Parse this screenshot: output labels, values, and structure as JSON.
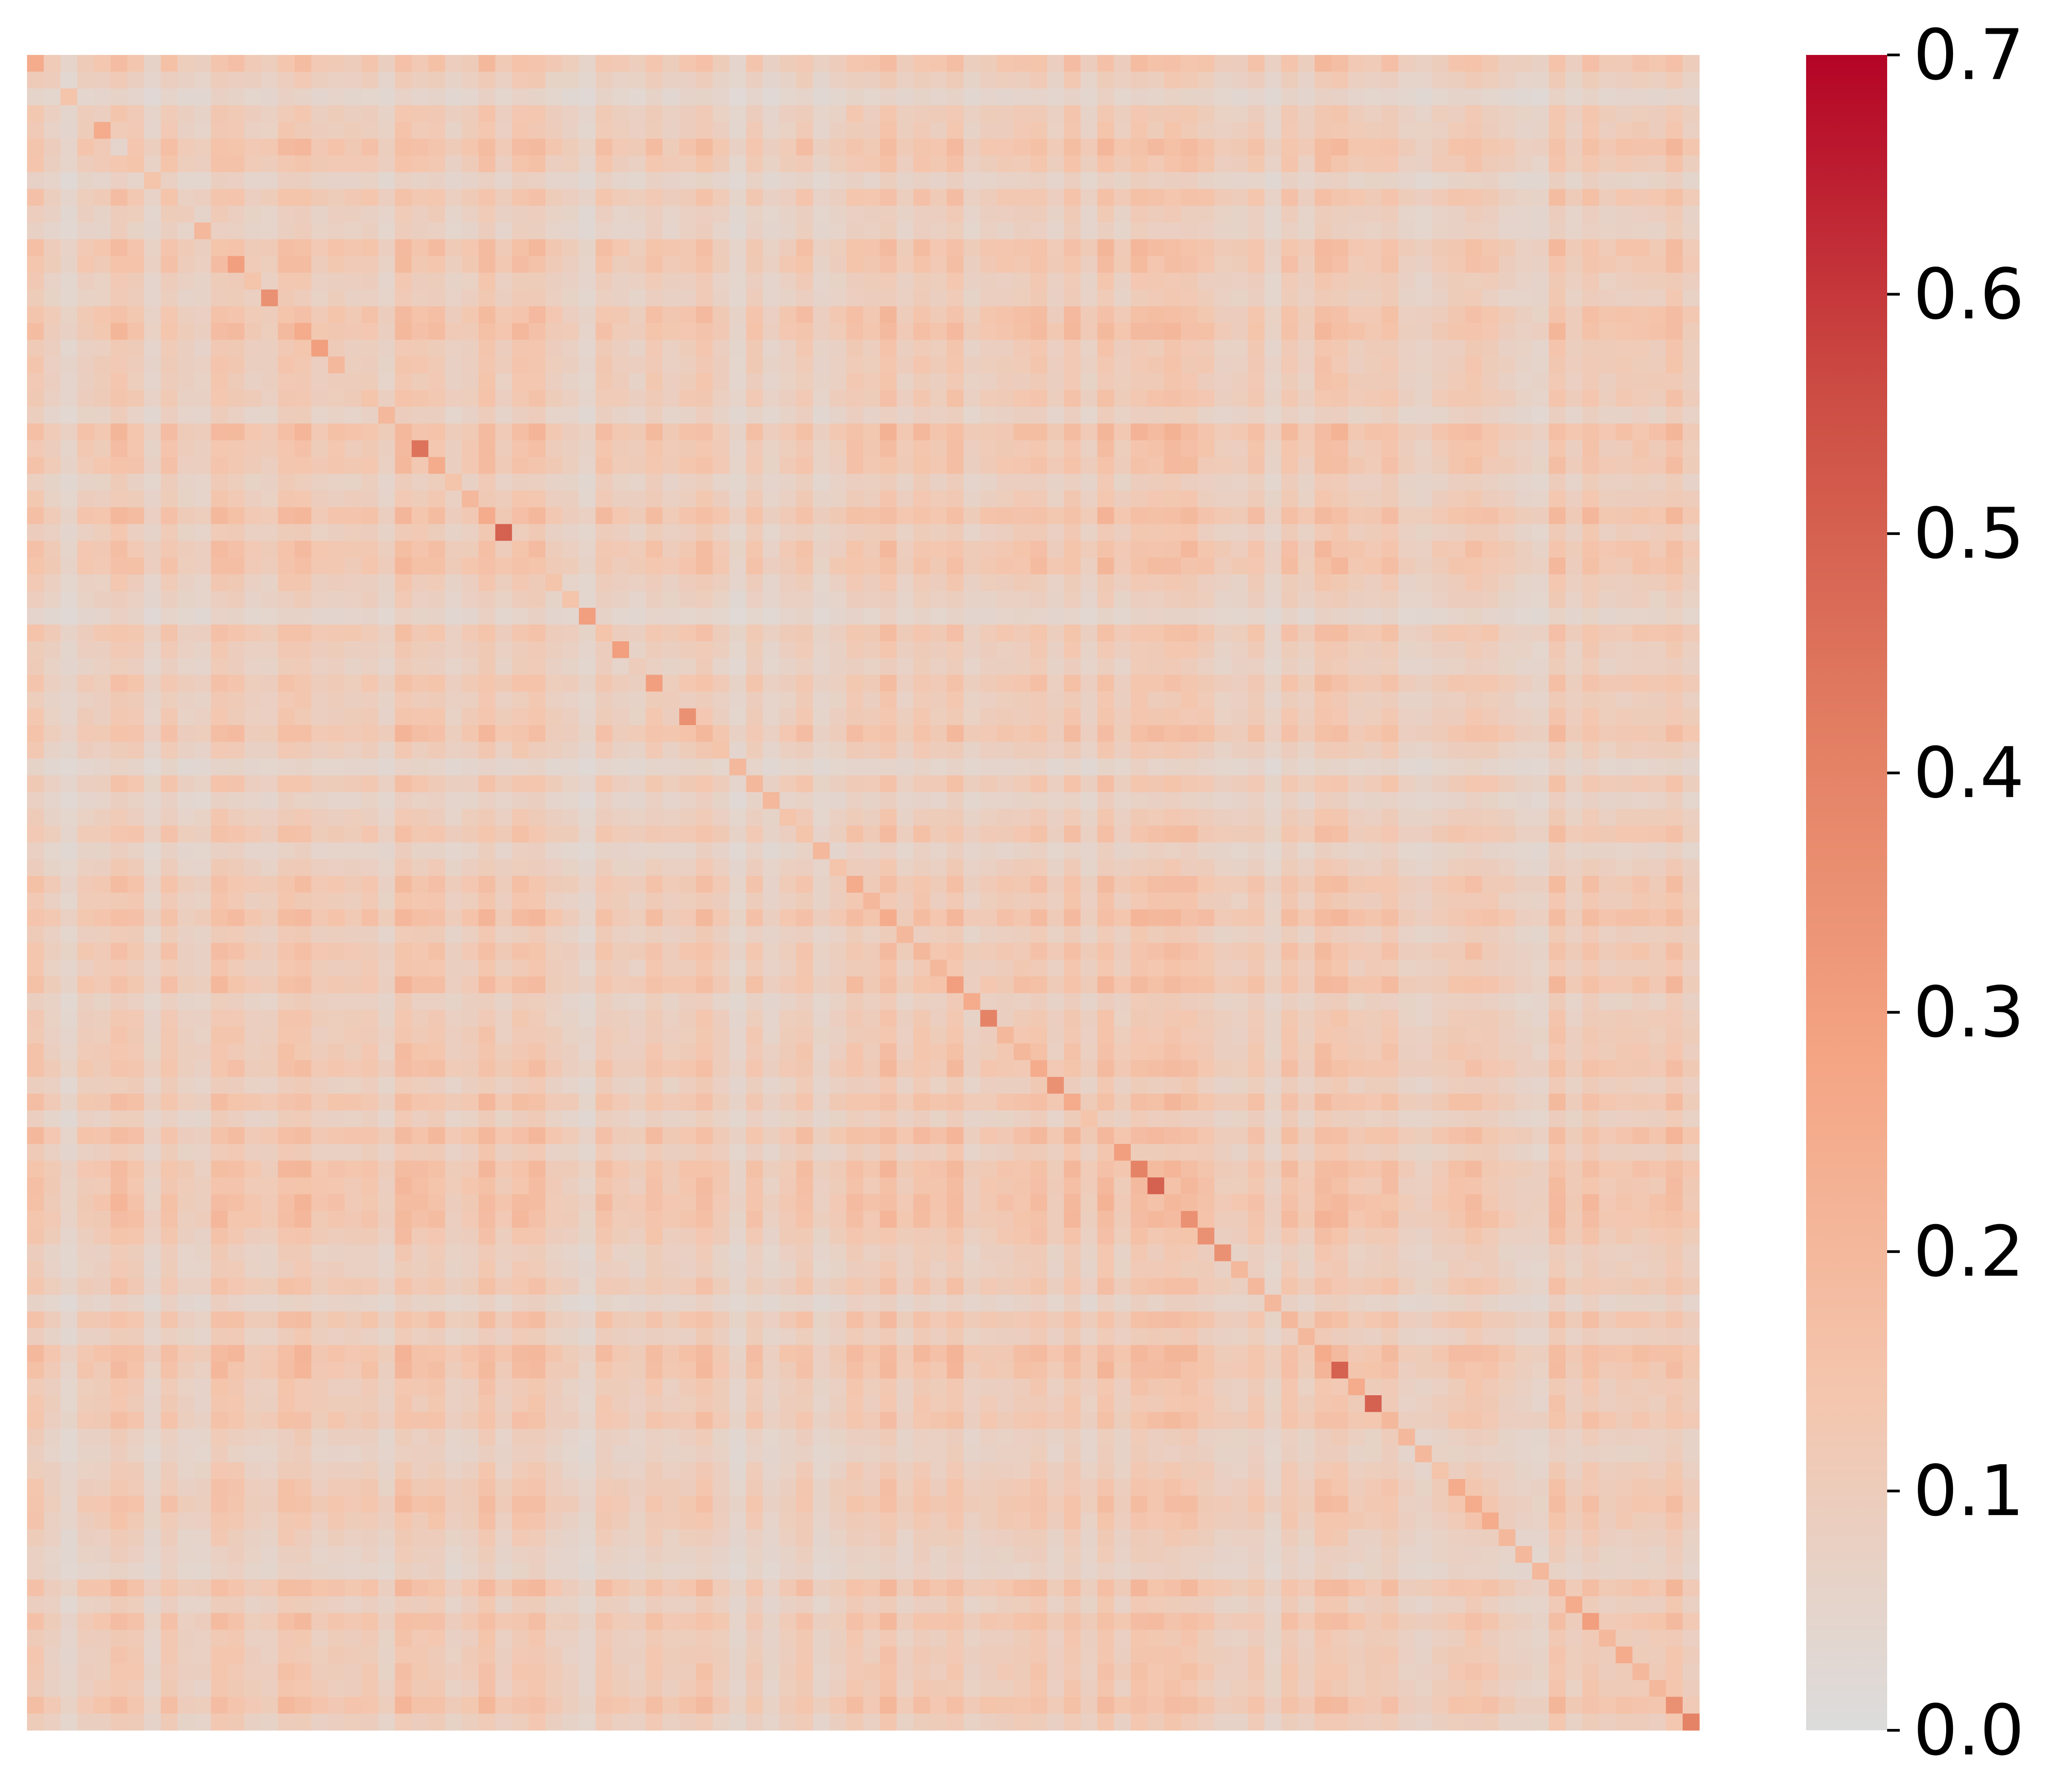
{
  "chart_data": {
    "type": "heatmap",
    "title": "",
    "xlabel": "",
    "ylabel": "",
    "n": 100,
    "diagonal": [
      0.25,
      0.1,
      0.15,
      0.1,
      0.25,
      0.05,
      0.15,
      0.15,
      0.15,
      0.1,
      0.2,
      0.15,
      0.3,
      0.15,
      0.35,
      0.15,
      0.25,
      0.3,
      0.2,
      0.1,
      0.15,
      0.2,
      0.2,
      0.45,
      0.25,
      0.15,
      0.2,
      0.25,
      0.5,
      0.15,
      0.15,
      0.15,
      0.15,
      0.3,
      0.15,
      0.3,
      0.1,
      0.3,
      0.1,
      0.35,
      0.2,
      0.15,
      0.2,
      0.2,
      0.2,
      0.15,
      0.15,
      0.2,
      0.15,
      0.25,
      0.2,
      0.25,
      0.2,
      0.2,
      0.2,
      0.3,
      0.25,
      0.4,
      0.2,
      0.2,
      0.25,
      0.35,
      0.25,
      0.15,
      0.2,
      0.3,
      0.4,
      0.5,
      0.2,
      0.35,
      0.35,
      0.35,
      0.2,
      0.2,
      0.2,
      0.2,
      0.2,
      0.25,
      0.5,
      0.25,
      0.5,
      0.2,
      0.2,
      0.2,
      0.15,
      0.25,
      0.25,
      0.25,
      0.2,
      0.2,
      0.2,
      0.2,
      0.25,
      0.3,
      0.2,
      0.25,
      0.2,
      0.2,
      0.35,
      0.4
    ],
    "row_strength": [
      0.13,
      0.06,
      0.02,
      0.08,
      0.08,
      0.16,
      0.11,
      0.03,
      0.12,
      0.05,
      0.04,
      0.15,
      0.13,
      0.07,
      0.06,
      0.15,
      0.16,
      0.08,
      0.09,
      0.08,
      0.1,
      0.04,
      0.18,
      0.12,
      0.13,
      0.05,
      0.08,
      0.17,
      0.07,
      0.14,
      0.15,
      0.07,
      0.05,
      0.02,
      0.12,
      0.07,
      0.05,
      0.12,
      0.07,
      0.09,
      0.15,
      0.07,
      0.02,
      0.1,
      0.03,
      0.07,
      0.12,
      0.03,
      0.06,
      0.13,
      0.09,
      0.17,
      0.06,
      0.13,
      0.09,
      0.16,
      0.05,
      0.08,
      0.09,
      0.11,
      0.14,
      0.06,
      0.15,
      0.05,
      0.17,
      0.07,
      0.16,
      0.14,
      0.17,
      0.16,
      0.11,
      0.06,
      0.06,
      0.11,
      0.03,
      0.13,
      0.06,
      0.18,
      0.16,
      0.09,
      0.09,
      0.13,
      0.05,
      0.04,
      0.07,
      0.1,
      0.13,
      0.1,
      0.06,
      0.04,
      0.03,
      0.16,
      0.06,
      0.14,
      0.08,
      0.09,
      0.1,
      0.09,
      0.16,
      0.07
    ],
    "vmin": 0.0,
    "vmax": 0.7,
    "colormap": [
      "#dcdcdc",
      "#f4c6ae",
      "#f4a584",
      "#e27d62",
      "#cc4c43",
      "#b40426"
    ],
    "colorbar": {
      "ticks": [
        0.0,
        0.1,
        0.2,
        0.3,
        0.4,
        0.5,
        0.6,
        0.7
      ],
      "labels": [
        "0.0",
        "0.1",
        "0.2",
        "0.3",
        "0.4",
        "0.5",
        "0.6",
        "0.7"
      ]
    },
    "grid": false,
    "legend": "colorbar-right"
  }
}
